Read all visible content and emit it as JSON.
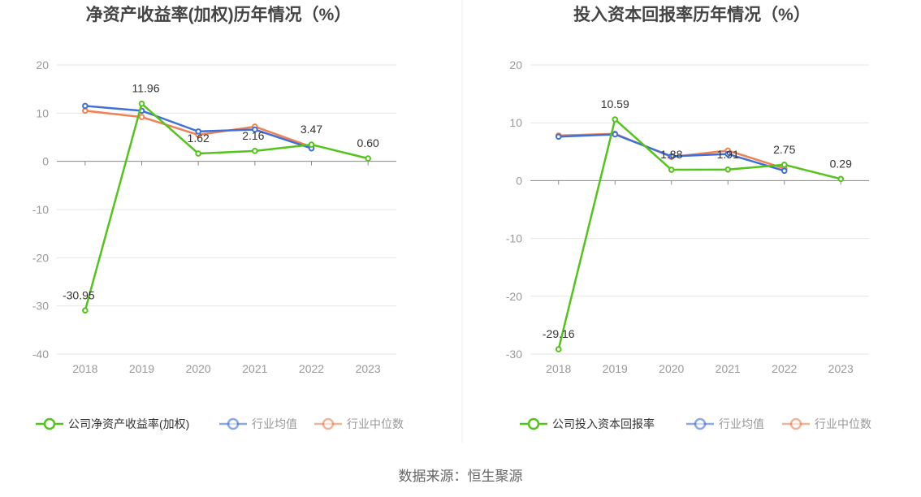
{
  "source": "数据来源：恒生聚源",
  "colors": {
    "company": "#52c41a",
    "avg": "#3f6fd8",
    "median": "#ee8155",
    "grid": "#e6e6e6",
    "axis": "#888888"
  },
  "chart_data": [
    {
      "type": "line",
      "title": "净资产收益率(加权)历年情况（%）",
      "categories": [
        "2018",
        "2019",
        "2020",
        "2021",
        "2022",
        "2023"
      ],
      "ylim": [
        -40,
        20
      ],
      "yticks": [
        "20",
        "10",
        "0",
        "-10",
        "-20",
        "-30",
        "-40"
      ],
      "grid": true,
      "legend_position": "bottom",
      "series": [
        {
          "name": "公司净资产收益率(加权)",
          "key": "company",
          "values": [
            -30.95,
            11.96,
            1.62,
            2.16,
            3.47,
            0.6
          ],
          "labels": [
            "-30.95",
            "11.96",
            "1.62",
            "2.16",
            "3.47",
            "0.60"
          ]
        },
        {
          "name": "行业均值",
          "key": "avg",
          "values": [
            11.5,
            10.5,
            6.2,
            6.6,
            2.7,
            null
          ]
        },
        {
          "name": "行业中位数",
          "key": "median",
          "values": [
            10.5,
            9.2,
            5.5,
            7.2,
            3.0,
            null
          ]
        }
      ]
    },
    {
      "type": "line",
      "title": "投入资本回报率历年情况（%）",
      "categories": [
        "2018",
        "2019",
        "2020",
        "2021",
        "2022",
        "2023"
      ],
      "ylim": [
        -30,
        20
      ],
      "yticks": [
        "20",
        "10",
        "0",
        "-10",
        "-20",
        "-30"
      ],
      "grid": true,
      "legend_position": "bottom",
      "series": [
        {
          "name": "公司投入资本回报率",
          "key": "company",
          "values": [
            -29.16,
            10.59,
            1.88,
            1.91,
            2.75,
            0.29
          ],
          "labels": [
            "-29.16",
            "10.59",
            "1.88",
            "1.91",
            "2.75",
            "0.29"
          ]
        },
        {
          "name": "行业均值",
          "key": "avg",
          "values": [
            7.6,
            8.0,
            4.2,
            4.6,
            1.7,
            null
          ]
        },
        {
          "name": "行业中位数",
          "key": "median",
          "values": [
            7.8,
            8.1,
            4.1,
            5.2,
            2.1,
            null
          ]
        }
      ]
    }
  ]
}
